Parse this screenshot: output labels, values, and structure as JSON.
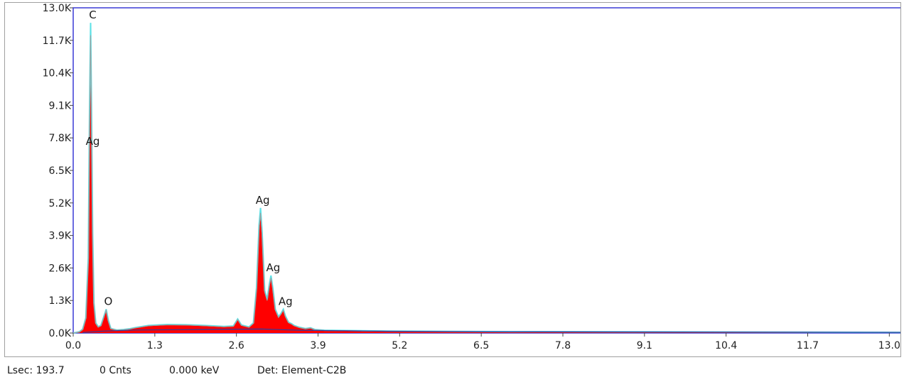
{
  "chart_data": {
    "type": "area",
    "title": "",
    "xlabel": "",
    "ylabel": "",
    "xlim": [
      0.0,
      13.2
    ],
    "ylim": [
      0,
      13000
    ],
    "x_ticks": [
      "0.0",
      "1.3",
      "2.6",
      "3.9",
      "5.2",
      "6.5",
      "7.8",
      "9.1",
      "10.4",
      "11.7",
      "13.0"
    ],
    "x_tick_values": [
      0.0,
      1.3,
      2.6,
      3.9,
      5.2,
      6.5,
      7.8,
      9.1,
      10.4,
      11.7,
      13.0
    ],
    "y_ticks": [
      "0.0K",
      "1.3K",
      "2.6K",
      "3.9K",
      "5.2K",
      "6.5K",
      "7.8K",
      "9.1K",
      "10.4K",
      "11.7K",
      "13.0K"
    ],
    "y_tick_values": [
      0,
      1300,
      2600,
      3900,
      5200,
      6500,
      7800,
      9100,
      10400,
      11700,
      13000
    ],
    "grid": false,
    "colors": {
      "fill": "#ff0000",
      "outline": "#5ce1e6",
      "background_trace": "#2a3fa0",
      "fit_trace": "#a0a0a0",
      "plot_border": "#3a3ad6"
    },
    "spectrum": [
      [
        0.0,
        0
      ],
      [
        0.1,
        50
      ],
      [
        0.15,
        150
      ],
      [
        0.2,
        600
      ],
      [
        0.24,
        3000
      ],
      [
        0.26,
        9000
      ],
      [
        0.277,
        12400
      ],
      [
        0.29,
        9500
      ],
      [
        0.31,
        4000
      ],
      [
        0.33,
        1200
      ],
      [
        0.36,
        400
      ],
      [
        0.4,
        250
      ],
      [
        0.44,
        300
      ],
      [
        0.48,
        600
      ],
      [
        0.525,
        950
      ],
      [
        0.56,
        500
      ],
      [
        0.6,
        180
      ],
      [
        0.7,
        120
      ],
      [
        0.8,
        140
      ],
      [
        0.9,
        170
      ],
      [
        1.0,
        220
      ],
      [
        1.2,
        300
      ],
      [
        1.5,
        340
      ],
      [
        1.8,
        330
      ],
      [
        2.1,
        300
      ],
      [
        2.4,
        260
      ],
      [
        2.55,
        280
      ],
      [
        2.62,
        560
      ],
      [
        2.68,
        320
      ],
      [
        2.8,
        240
      ],
      [
        2.87,
        400
      ],
      [
        2.92,
        1800
      ],
      [
        2.96,
        4300
      ],
      [
        2.984,
        5000
      ],
      [
        3.01,
        4000
      ],
      [
        3.05,
        1700
      ],
      [
        3.09,
        1350
      ],
      [
        3.125,
        1950
      ],
      [
        3.151,
        2300
      ],
      [
        3.18,
        1800
      ],
      [
        3.22,
        950
      ],
      [
        3.27,
        650
      ],
      [
        3.31,
        780
      ],
      [
        3.348,
        950
      ],
      [
        3.38,
        680
      ],
      [
        3.43,
        430
      ],
      [
        3.48,
        370
      ],
      [
        3.52,
        300
      ],
      [
        3.6,
        230
      ],
      [
        3.7,
        180
      ],
      [
        3.78,
        210
      ],
      [
        3.85,
        140
      ],
      [
        4.0,
        110
      ],
      [
        5.0,
        80
      ],
      [
        6.0,
        65
      ],
      [
        7.0,
        55
      ],
      [
        9.0,
        45
      ],
      [
        11.0,
        35
      ],
      [
        13.2,
        25
      ]
    ],
    "peaks": [
      {
        "label": "C",
        "x": 0.277,
        "y": 12400
      },
      {
        "label": "Ag",
        "x": 0.277,
        "y": 7350
      },
      {
        "label": "O",
        "x": 0.525,
        "y": 950
      },
      {
        "label": "Ag",
        "x": 2.984,
        "y": 5000
      },
      {
        "label": "Ag",
        "x": 3.151,
        "y": 2300
      },
      {
        "label": "Ag",
        "x": 3.348,
        "y": 950
      }
    ]
  },
  "status": {
    "lsec": "Lsec: 193.7",
    "counts": "0 Cnts",
    "energy": "0.000 keV",
    "detector": "Det: Element-C2B"
  }
}
